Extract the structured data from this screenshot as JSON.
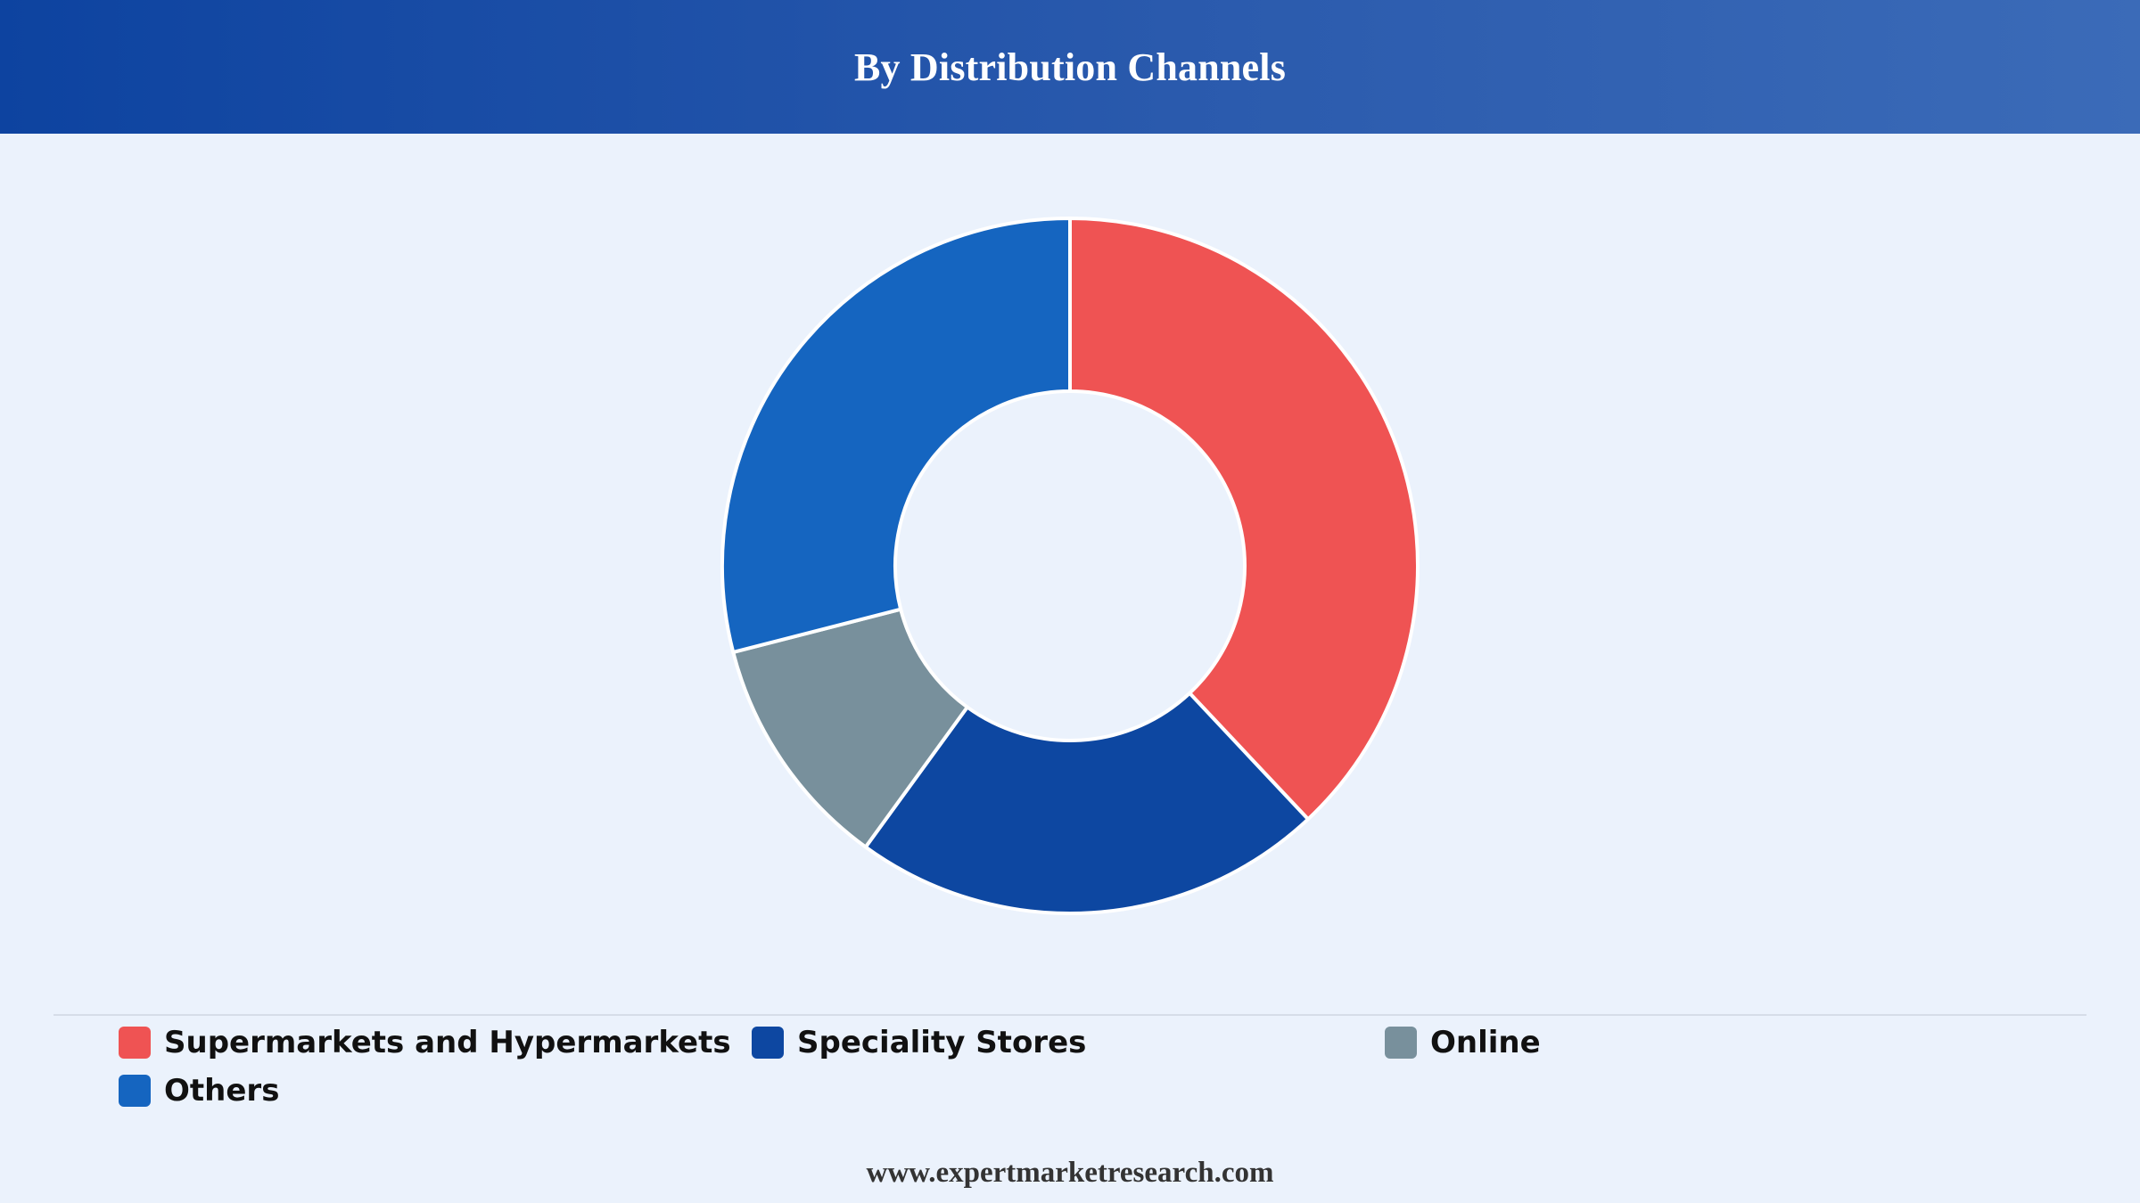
{
  "header": {
    "title": "By Distribution Channels"
  },
  "chart_data": {
    "type": "pie",
    "style": "donut",
    "title": "By Distribution Channels",
    "categories": [
      "Supermarkets and Hypermarkets",
      "Speciality Stores",
      "Online",
      "Others"
    ],
    "values": [
      38,
      22,
      11,
      29
    ],
    "unit": "%",
    "colors": [
      "#ef5353",
      "#0d47a1",
      "#78909c",
      "#1565c0"
    ],
    "legend_position": "bottom",
    "start_angle": "top, clockwise"
  },
  "legend": {
    "items": [
      {
        "label": "Supermarkets and Hypermarkets",
        "color": "#ef5353"
      },
      {
        "label": "Speciality Stores",
        "color": "#0d47a1"
      },
      {
        "label": "Online",
        "color": "#78909c"
      },
      {
        "label": "Others",
        "color": "#1565c0"
      }
    ]
  },
  "footer": {
    "url": "www.expertmarketresearch.com"
  }
}
